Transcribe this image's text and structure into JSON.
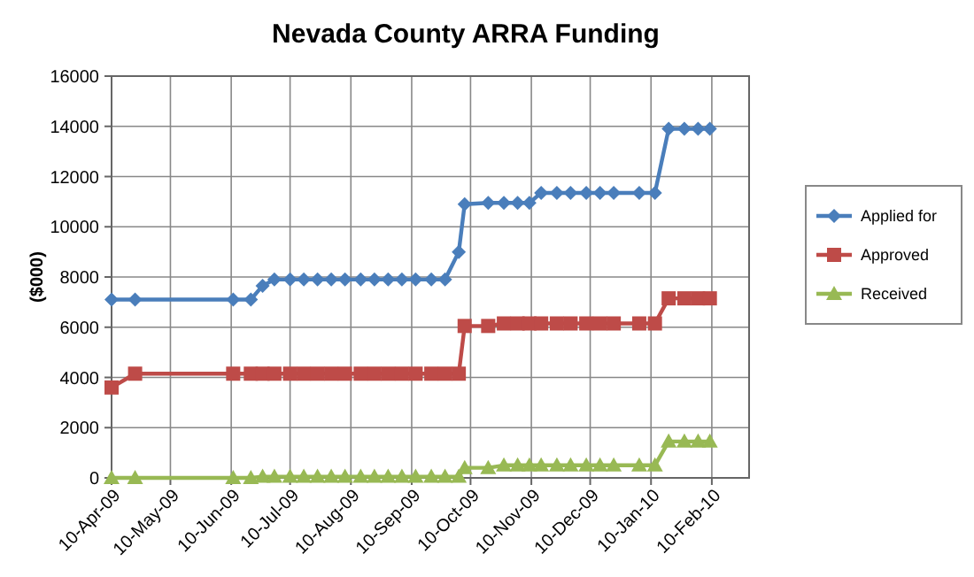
{
  "chart_data": {
    "type": "line",
    "title": "Nevada County ARRA Funding",
    "ylabel": "($000)",
    "x": [
      "2009-04-10",
      "2009-04-22",
      "2009-06-11",
      "2009-06-20",
      "2009-06-26",
      "2009-07-02",
      "2009-07-10",
      "2009-07-17",
      "2009-07-24",
      "2009-07-31",
      "2009-08-07",
      "2009-08-15",
      "2009-08-22",
      "2009-08-29",
      "2009-09-05",
      "2009-09-12",
      "2009-09-20",
      "2009-09-27",
      "2009-10-04",
      "2009-10-07",
      "2009-10-19",
      "2009-10-27",
      "2009-11-03",
      "2009-11-09",
      "2009-11-15",
      "2009-11-23",
      "2009-11-30",
      "2009-12-08",
      "2009-12-15",
      "2009-12-22",
      "2010-01-04",
      "2010-01-12",
      "2010-01-19",
      "2010-01-27",
      "2010-02-03",
      "2010-02-09"
    ],
    "series": [
      {
        "name": "Applied for",
        "color": "#4a7ebb",
        "marker": "diamond",
        "values": [
          7100,
          7100,
          7100,
          7100,
          7650,
          7900,
          7900,
          7900,
          7900,
          7900,
          7900,
          7900,
          7900,
          7900,
          7900,
          7900,
          7900,
          7900,
          9000,
          10900,
          10950,
          10950,
          10950,
          10950,
          11350,
          11350,
          11350,
          11350,
          11350,
          11350,
          11350,
          11350,
          13900,
          13900,
          13900,
          13900
        ]
      },
      {
        "name": "Approved",
        "color": "#be4b48",
        "marker": "square",
        "values": [
          3600,
          4150,
          4150,
          4150,
          4150,
          4150,
          4150,
          4150,
          4150,
          4150,
          4150,
          4150,
          4150,
          4150,
          4150,
          4150,
          4150,
          4150,
          4150,
          6050,
          6050,
          6150,
          6150,
          6150,
          6150,
          6150,
          6150,
          6150,
          6150,
          6150,
          6150,
          6150,
          7150,
          7150,
          7150,
          7150
        ]
      },
      {
        "name": "Received",
        "color": "#98b954",
        "marker": "triangle",
        "values": [
          0,
          0,
          0,
          0,
          50,
          50,
          50,
          50,
          50,
          50,
          50,
          50,
          50,
          50,
          50,
          50,
          50,
          50,
          50,
          400,
          400,
          500,
          500,
          500,
          500,
          500,
          500,
          500,
          500,
          500,
          500,
          500,
          1450,
          1450,
          1450,
          1450
        ]
      }
    ],
    "xlim": [
      "2009-04-10",
      "2010-03-01"
    ],
    "xticks": [
      {
        "value": "2009-04-10",
        "label": "10-Apr-09"
      },
      {
        "value": "2009-05-10",
        "label": "10-May-09"
      },
      {
        "value": "2009-06-10",
        "label": "10-Jun-09"
      },
      {
        "value": "2009-07-10",
        "label": "10-Jul-09"
      },
      {
        "value": "2009-08-10",
        "label": "10-Aug-09"
      },
      {
        "value": "2009-09-10",
        "label": "10-Sep-09"
      },
      {
        "value": "2009-10-10",
        "label": "10-Oct-09"
      },
      {
        "value": "2009-11-10",
        "label": "10-Nov-09"
      },
      {
        "value": "2009-12-10",
        "label": "10-Dec-09"
      },
      {
        "value": "2010-01-10",
        "label": "10-Jan-10"
      },
      {
        "value": "2010-02-10",
        "label": "10-Feb-10"
      }
    ],
    "ylim": [
      0,
      16000
    ],
    "yticks": [
      0,
      2000,
      4000,
      6000,
      8000,
      10000,
      12000,
      14000,
      16000
    ],
    "grid": true,
    "legend": "right",
    "line_style": "solid"
  }
}
